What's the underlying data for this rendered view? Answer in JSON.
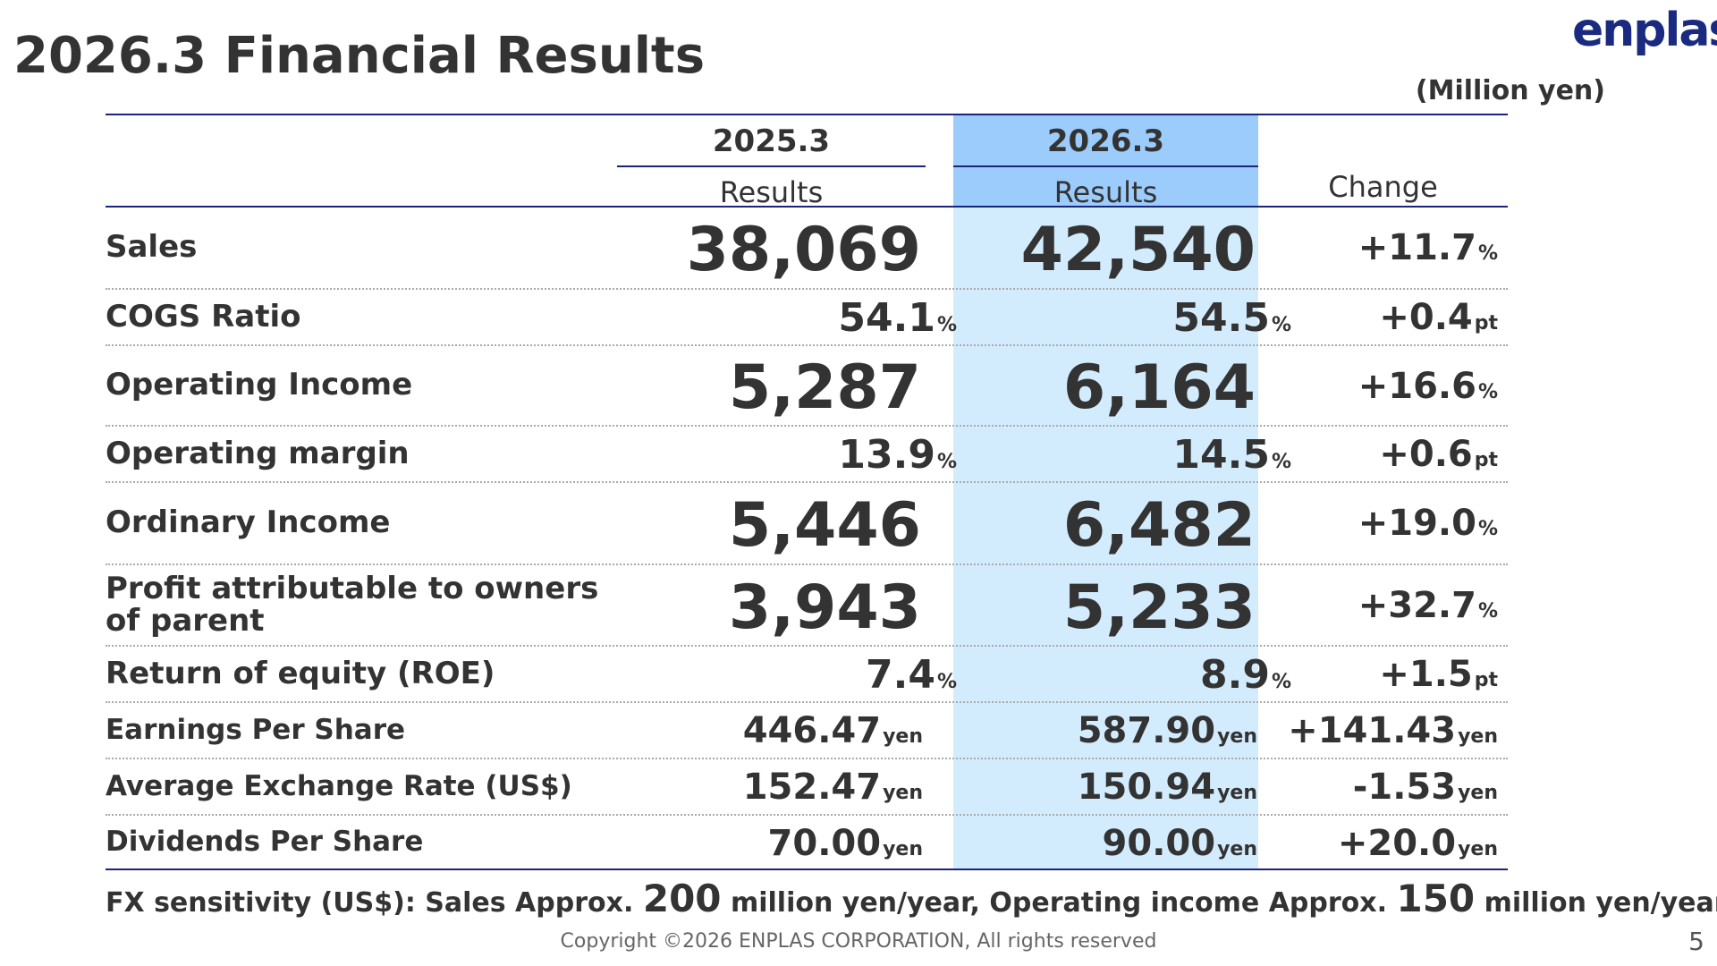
{
  "header": {
    "title": "2026.3 Financial Results",
    "logo": "enplas",
    "unit": "(Million yen)"
  },
  "columns": {
    "prev_year": "2025.3",
    "prev_sub": "Results",
    "curr_year": "2026.3",
    "curr_sub": "Results",
    "change": "Change"
  },
  "rows": [
    {
      "label": "Sales",
      "prev": "38,069",
      "prev_unit": "",
      "curr": "42,540",
      "curr_unit": "",
      "chg": "+11.7",
      "chg_unit": "%"
    },
    {
      "label": "COGS Ratio",
      "prev": "54.1",
      "prev_unit": "%",
      "curr": "54.5",
      "curr_unit": "%",
      "chg": "+0.4",
      "chg_unit": "pt"
    },
    {
      "label": "Operating Income",
      "prev": "5,287",
      "prev_unit": "",
      "curr": "6,164",
      "curr_unit": "",
      "chg": "+16.6",
      "chg_unit": "%"
    },
    {
      "label": "Operating margin",
      "prev": "13.9",
      "prev_unit": "%",
      "curr": "14.5",
      "curr_unit": "%",
      "chg": "+0.6",
      "chg_unit": "pt"
    },
    {
      "label": "Ordinary Income",
      "prev": "5,446",
      "prev_unit": "",
      "curr": "6,482",
      "curr_unit": "",
      "chg": "+19.0",
      "chg_unit": "%"
    },
    {
      "label": "Profit attributable to owners of parent",
      "prev": "3,943",
      "prev_unit": "",
      "curr": "5,233",
      "curr_unit": "",
      "chg": "+32.7",
      "chg_unit": "%"
    },
    {
      "label": "Return of equity (ROE)",
      "prev": "7.4",
      "prev_unit": "%",
      "curr": "8.9",
      "curr_unit": "%",
      "chg": "+1.5",
      "chg_unit": "pt"
    },
    {
      "label": "Earnings Per Share",
      "prev": "446.47",
      "prev_unit": "yen",
      "curr": "587.90",
      "curr_unit": "yen",
      "chg": "+141.43",
      "chg_unit": "yen"
    },
    {
      "label": "Average Exchange Rate (US$)",
      "prev": "152.47",
      "prev_unit": "yen",
      "curr": "150.94",
      "curr_unit": "yen",
      "chg": "-1.53",
      "chg_unit": "yen"
    },
    {
      "label": "Dividends Per Share",
      "prev": "70.00",
      "prev_unit": "yen",
      "curr": "90.00",
      "curr_unit": "yen",
      "chg": "+20.0",
      "chg_unit": "yen"
    }
  ],
  "footer": {
    "fx_prefix": "FX sensitivity (US$): Sales Approx.",
    "fx_sales": "200",
    "fx_mid": "million yen/year, Operating income Approx.",
    "fx_op": "150",
    "fx_suffix": "million yen/year",
    "copyright": "Copyright ©2026 ENPLAS CORPORATION, All rights reserved",
    "page": "5"
  }
}
